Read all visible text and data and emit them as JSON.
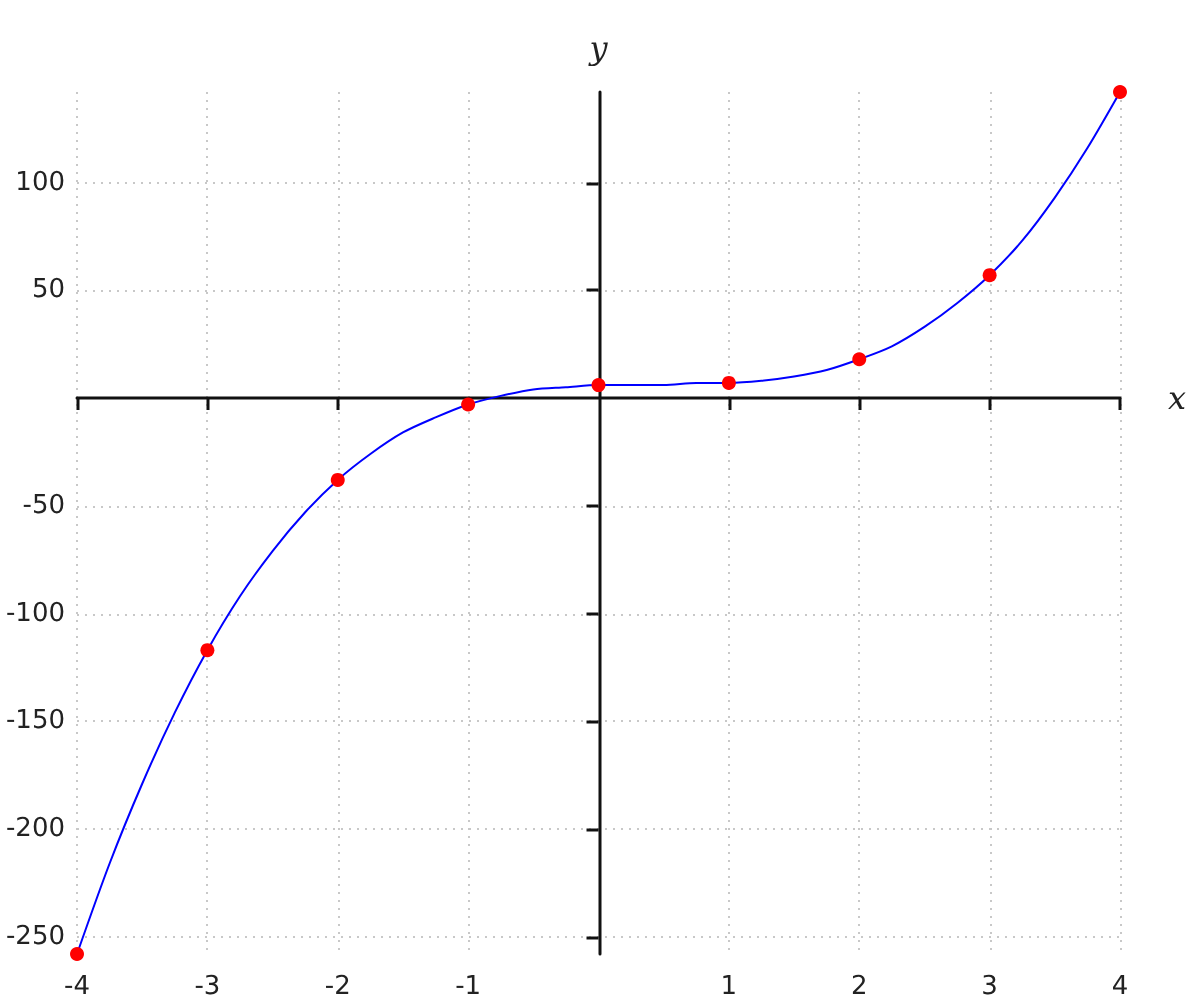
{
  "chart_data": {
    "type": "scatter",
    "xlabel": "x",
    "ylabel": "y",
    "xlim": [
      -4,
      4
    ],
    "ylim": [
      -258,
      142
    ],
    "xticks": [
      -4,
      -3,
      -2,
      -1,
      1,
      2,
      3,
      4
    ],
    "yticks": [
      -250,
      -200,
      -150,
      -100,
      -50,
      50,
      100
    ],
    "grid": true,
    "series": [
      {
        "type": "line",
        "color": "#0000ff",
        "marker": "none",
        "line_style": "solid",
        "x": [
          -4,
          -3.75,
          -3.5,
          -3.25,
          -3,
          -2.75,
          -2.5,
          -2.25,
          -2,
          -1.75,
          -1.5,
          -1.25,
          -1,
          -0.75,
          -0.5,
          -0.25,
          0,
          0.25,
          0.5,
          0.75,
          1,
          1.25,
          1.5,
          1.75,
          2,
          2.25,
          2.5,
          2.75,
          3,
          3.25,
          3.5,
          3.75,
          4
        ],
        "values": [
          -258,
          -216,
          -179,
          -146,
          -117,
          -92,
          -71,
          -53,
          -38,
          -26,
          -16,
          -9,
          -3,
          1,
          4,
          5,
          6,
          6,
          6,
          7,
          7,
          8,
          10,
          13,
          18,
          24,
          33,
          44,
          57,
          73,
          93,
          116,
          142
        ]
      },
      {
        "color": "#ff0000",
        "marker": "circle",
        "x": [
          -4,
          -3,
          -2,
          -1,
          0,
          1,
          2,
          3,
          4
        ],
        "values": [
          -258,
          -117,
          -38,
          -3,
          6,
          7,
          18,
          57,
          142
        ]
      }
    ]
  }
}
